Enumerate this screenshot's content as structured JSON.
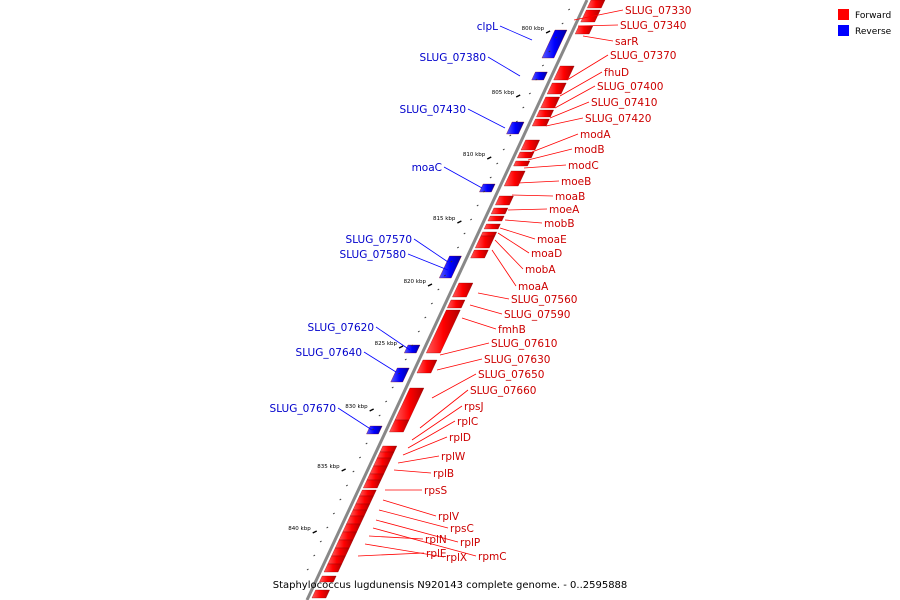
{
  "caption": "Staphylococcus lugdunensis N920143 complete genome. - 0..2595888",
  "legend": [
    {
      "label": "Forward",
      "color": "#ff0000"
    },
    {
      "label": "Reverse",
      "color": "#0000ff"
    }
  ],
  "colors": {
    "forward": "#ff0000",
    "reverse": "#0000ff",
    "backbone": "#888888"
  },
  "ticks": [
    "800 kbp",
    "805 kbp",
    "810 kbp",
    "815 kbp",
    "820 kbp",
    "825 kbp",
    "830 kbp",
    "835 kbp",
    "840 kbp"
  ],
  "forward_labels": [
    "SLUG_07330",
    "SLUG_07340",
    "sarR",
    "SLUG_07370",
    "fhuD",
    "SLUG_07400",
    "SLUG_07410",
    "SLUG_07420",
    "modA",
    "modB",
    "modC",
    "moeB",
    "moaB",
    "moeA",
    "mobB",
    "moaE",
    "moaD",
    "mobA",
    "moaA",
    "SLUG_07560",
    "SLUG_07590",
    "fmhB",
    "SLUG_07610",
    "SLUG_07630",
    "SLUG_07650",
    "SLUG_07660",
    "rpsJ",
    "rplC",
    "rplD",
    "rplW",
    "rplB",
    "rpsS",
    "rplV",
    "rpsC",
    "rplP",
    "rpmC",
    "rplN",
    "rplX",
    "rplE"
  ],
  "reverse_labels": [
    "clpL",
    "SLUG_07380",
    "SLUG_07430",
    "moaC",
    "SLUG_07570",
    "SLUG_07580",
    "SLUG_07620",
    "SLUG_07640",
    "SLUG_07670"
  ]
}
